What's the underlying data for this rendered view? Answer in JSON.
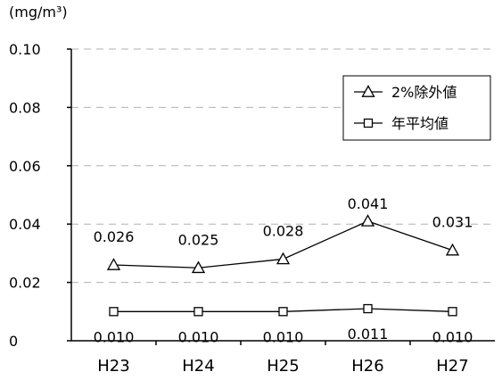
{
  "chart_data": {
    "type": "line",
    "unit": "(mg/m³)",
    "categories": [
      "H23",
      "H24",
      "H25",
      "H26",
      "H27"
    ],
    "ylim": [
      0,
      0.1
    ],
    "y_ticks": [
      "0",
      "0.02",
      "0.04",
      "0.06",
      "0.08",
      "0.10"
    ],
    "grid": true,
    "legend_position": "top-right",
    "series": [
      {
        "name": "2%除外値",
        "marker": "triangle",
        "values": [
          0.026,
          0.025,
          0.028,
          0.041,
          0.031
        ],
        "labels": [
          "0.026",
          "0.025",
          "0.028",
          "0.041",
          "0.031"
        ]
      },
      {
        "name": "年平均値",
        "marker": "square",
        "values": [
          0.01,
          0.01,
          0.01,
          0.011,
          0.01
        ],
        "labels": [
          "0.010",
          "0.010",
          "0.010",
          "0.011",
          "0.010"
        ]
      }
    ]
  }
}
